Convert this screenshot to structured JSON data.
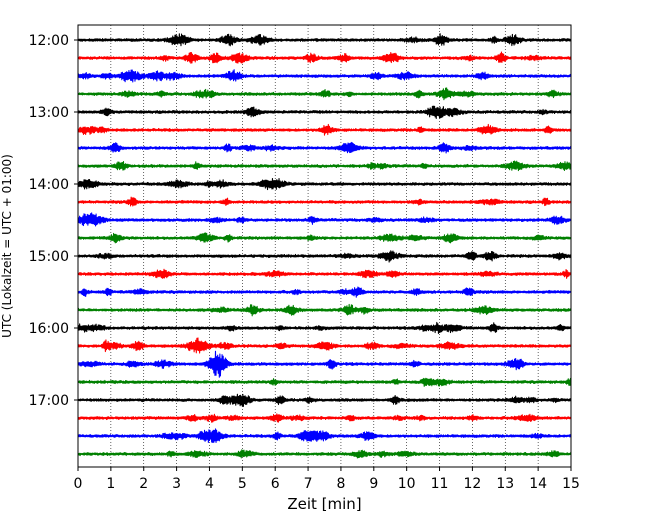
{
  "chart_data": {
    "type": "line",
    "title": "",
    "xlabel": "Zeit  [min]",
    "ylabel": "UTC (Lokalzeit = UTC + 01:00)",
    "xlim": [
      0,
      15
    ],
    "x_ticks": [
      "0",
      "1",
      "2",
      "3",
      "4",
      "5",
      "6",
      "7",
      "8",
      "9",
      "10",
      "11",
      "12",
      "13",
      "14",
      "15"
    ],
    "y_ticks": [
      "12:00",
      "13:00",
      "14:00",
      "15:00",
      "16:00",
      "17:00"
    ],
    "vertical_grid": true,
    "grid_style": "dotted",
    "trace_interval_minutes": 15,
    "trace_colors": [
      "#000000",
      "#ff0000",
      "#0000ff",
      "#008000"
    ],
    "series": [
      {
        "start": "12:00"
      },
      {
        "start": "12:15"
      },
      {
        "start": "12:30"
      },
      {
        "start": "12:45"
      },
      {
        "start": "13:00"
      },
      {
        "start": "13:15"
      },
      {
        "start": "13:30"
      },
      {
        "start": "13:45"
      },
      {
        "start": "14:00"
      },
      {
        "start": "14:15"
      },
      {
        "start": "14:30"
      },
      {
        "start": "14:45"
      },
      {
        "start": "15:00"
      },
      {
        "start": "15:15"
      },
      {
        "start": "15:30"
      },
      {
        "start": "15:45"
      },
      {
        "start": "16:00"
      },
      {
        "start": "16:15"
      },
      {
        "start": "16:30"
      },
      {
        "start": "16:45"
      },
      {
        "start": "17:00"
      },
      {
        "start": "17:15"
      },
      {
        "start": "17:30"
      },
      {
        "start": "17:45"
      }
    ]
  }
}
